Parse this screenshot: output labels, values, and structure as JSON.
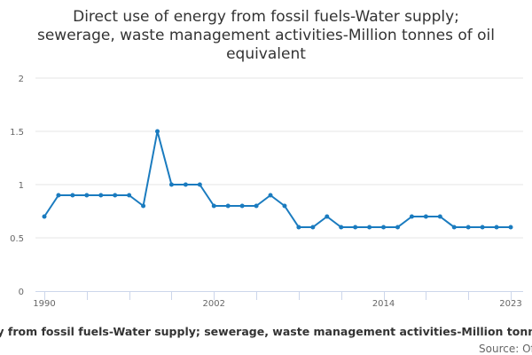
{
  "chart_data": {
    "type": "line",
    "title_lines": [
      "Direct use of energy from fossil fuels-Water supply;",
      "sewerage, waste management activities-Million tonnes of oil",
      "equivalent"
    ],
    "x": [
      1990,
      1991,
      1992,
      1993,
      1994,
      1995,
      1996,
      1997,
      1998,
      1999,
      2000,
      2001,
      2002,
      2003,
      2004,
      2005,
      2006,
      2007,
      2008,
      2009,
      2010,
      2011,
      2012,
      2013,
      2014,
      2015,
      2016,
      2017,
      2018,
      2019,
      2020,
      2021,
      2022,
      2023
    ],
    "series": [
      {
        "name": "Direct use of energy from fossil fuels-Water supply; sewerage, waste management activities-Million tonnes of oil equivalent",
        "values": [
          0.7,
          0.9,
          0.9,
          0.9,
          0.9,
          0.9,
          0.9,
          0.8,
          1.5,
          1.0,
          1.0,
          1.0,
          0.8,
          0.8,
          0.8,
          0.8,
          0.9,
          0.8,
          0.6,
          0.6,
          0.7,
          0.6,
          0.6,
          0.6,
          0.6,
          0.6,
          0.7,
          0.7,
          0.7,
          0.6,
          0.6,
          0.6,
          0.6,
          0.6
        ],
        "color": "#1a7bbf"
      }
    ],
    "xlim": [
      1990,
      2023
    ],
    "ylim": [
      0,
      2
    ],
    "x_ticks": [
      1990,
      2002,
      2014,
      2023
    ],
    "x_tick_labels": [
      "1990",
      "2002",
      "2014",
      "2023"
    ],
    "y_ticks": [
      0,
      0.5,
      1,
      1.5,
      2
    ],
    "y_tick_labels": [
      "0",
      "0.5",
      "1",
      "1.5",
      "2"
    ],
    "xlabel": "",
    "ylabel": "",
    "grid": true,
    "legend_text": "Direct use of energy from fossil fuels-Water supply; sewerage, waste management activities-Million tonnes of oil equivalent",
    "credits": "Source: Office for National Statistics"
  }
}
